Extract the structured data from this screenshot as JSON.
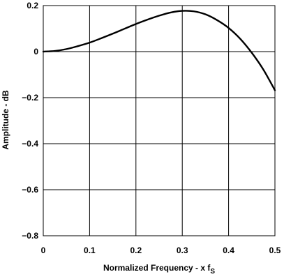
{
  "chart_data": {
    "type": "line",
    "xlabel": "Normalized Frequency - x f",
    "xlabel_subscript": "S",
    "ylabel": "Amplitude - dB",
    "xlim": [
      0,
      0.5
    ],
    "ylim": [
      -0.8,
      0.2
    ],
    "grid": true,
    "x_ticks": [
      0,
      0.1,
      0.2,
      0.3,
      0.4,
      0.5
    ],
    "x_tick_labels": [
      "0",
      "0.1",
      "0.2",
      "0.3",
      "0.4",
      "0.5"
    ],
    "y_ticks": [
      0.2,
      0,
      -0.2,
      -0.4,
      -0.6,
      -0.8
    ],
    "y_tick_labels": [
      "0.2",
      "0",
      "−0.2",
      "−0.4",
      "−0.6",
      "−0.8"
    ],
    "series": [
      {
        "x": [
          0,
          0.025,
          0.05,
          0.075,
          0.1,
          0.125,
          0.15,
          0.175,
          0.2,
          0.225,
          0.25,
          0.275,
          0.3,
          0.325,
          0.35,
          0.375,
          0.4,
          0.425,
          0.45,
          0.475,
          0.5
        ],
        "y": [
          0,
          0.003,
          0.011,
          0.024,
          0.039,
          0.058,
          0.078,
          0.099,
          0.12,
          0.139,
          0.156,
          0.17,
          0.177,
          0.175,
          0.162,
          0.137,
          0.103,
          0.056,
          -0.005,
          -0.078,
          -0.168
        ]
      }
    ],
    "colors": {
      "line": "#000000",
      "grid": "#000000",
      "background": "#ffffff"
    }
  }
}
